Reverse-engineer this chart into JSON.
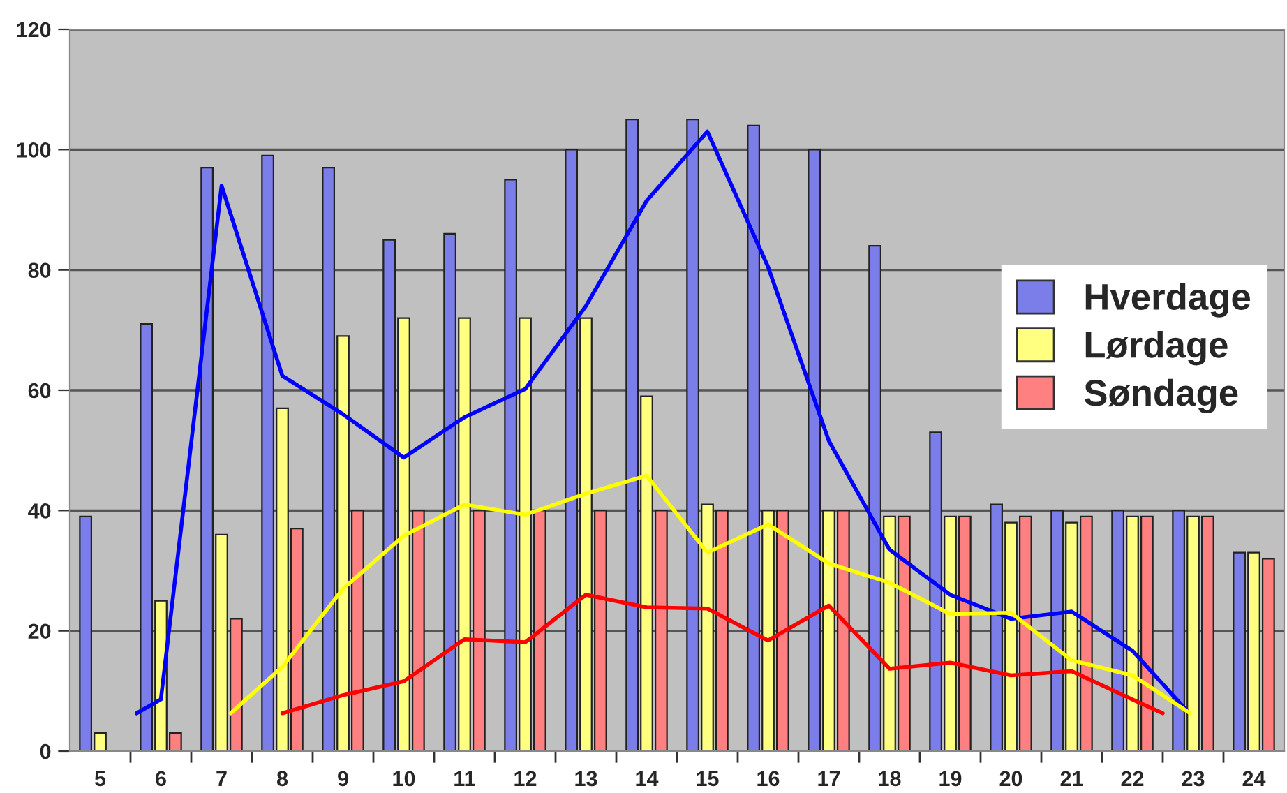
{
  "chart_data": {
    "type": "bar",
    "x": [
      5,
      6,
      7,
      8,
      9,
      10,
      11,
      12,
      13,
      14,
      15,
      16,
      17,
      18,
      19,
      20,
      21,
      22,
      23,
      24
    ],
    "series": [
      {
        "name": "Hverdage",
        "color": "#7b7ee8",
        "values": [
          39,
          71,
          97,
          99,
          97,
          85,
          86,
          95,
          100,
          105,
          105,
          104,
          100,
          84,
          53,
          41,
          40,
          40,
          40,
          33
        ]
      },
      {
        "name": "Lørdage",
        "color": "#ffff80",
        "values": [
          3,
          25,
          36,
          57,
          69,
          72,
          72,
          72,
          72,
          59,
          41,
          40,
          40,
          39,
          39,
          38,
          38,
          39,
          39,
          33
        ]
      },
      {
        "name": "Søndage",
        "color": "#ff8080",
        "values": [
          null,
          3,
          22,
          37,
          40,
          40,
          40,
          40,
          40,
          40,
          40,
          40,
          40,
          39,
          39,
          39,
          39,
          39,
          39,
          32
        ]
      },
      {
        "type": "line",
        "color": "#0000ff",
        "x": [
          5.6,
          6,
          7,
          8,
          9,
          10,
          11,
          12,
          13,
          14,
          15,
          16,
          17,
          18,
          19,
          20,
          21,
          22,
          22.9
        ],
        "values": [
          6.3,
          8.6,
          94,
          62.4,
          56,
          48.8,
          55.5,
          60.2,
          74,
          91.5,
          103,
          80.5,
          51.6,
          33.5,
          26,
          22,
          23.2,
          16.7,
          6.7
        ]
      },
      {
        "type": "line",
        "color": "#ffff00",
        "x": [
          7.15,
          8,
          9,
          10,
          11,
          12,
          13,
          14,
          15,
          16,
          17,
          18,
          19,
          20,
          21,
          22,
          22.95
        ],
        "values": [
          6.3,
          14,
          27,
          35.8,
          41,
          39.3,
          42.8,
          45.8,
          33,
          37.7,
          31.2,
          28,
          22.8,
          23,
          15.1,
          12.6,
          6.3
        ]
      },
      {
        "type": "line",
        "color": "#ff0000",
        "x": [
          8,
          9,
          10,
          11,
          12,
          13,
          14,
          15,
          16,
          17,
          18,
          19,
          20,
          21,
          22,
          22.5
        ],
        "values": [
          6.3,
          9.3,
          11.6,
          18.6,
          18.1,
          26,
          23.9,
          23.7,
          18.4,
          24.2,
          13.7,
          14.7,
          12.6,
          13.3,
          8.6,
          6.3
        ]
      }
    ],
    "xlim": [
      4.5,
      24.5
    ],
    "xticks": [
      5,
      6,
      7,
      8,
      9,
      10,
      11,
      12,
      13,
      14,
      15,
      16,
      17,
      18,
      19,
      20,
      21,
      22,
      23,
      24,
      {
        "value": 5.5,
        "label": null
      },
      {
        "value": 6.5,
        "label": null
      },
      {
        "value": 7.5,
        "label": null
      },
      {
        "value": 8.5,
        "label": null
      },
      {
        "value": 9.5,
        "label": null
      },
      {
        "value": 10.5,
        "label": null
      },
      {
        "value": 11.5,
        "label": null
      },
      {
        "value": 12.5,
        "label": null
      },
      {
        "value": 13.5,
        "label": null
      },
      {
        "value": 14.5,
        "label": null
      },
      {
        "value": 15.5,
        "label": null
      },
      {
        "value": 16.5,
        "label": null
      },
      {
        "value": 17.5,
        "label": null
      },
      {
        "value": 18.5,
        "label": null
      },
      {
        "value": 19.5,
        "label": null
      },
      {
        "value": 20.5,
        "label": null
      },
      {
        "value": 21.5,
        "label": null
      },
      {
        "value": 22.5,
        "label": null
      },
      {
        "value": 23.5,
        "label": null
      }
    ],
    "ylim": [
      0,
      120
    ],
    "yticks": [
      0,
      20,
      40,
      60,
      80,
      100,
      120
    ],
    "grid": "y",
    "legend": "right",
    "line_style": "solid",
    "marker": "none"
  }
}
